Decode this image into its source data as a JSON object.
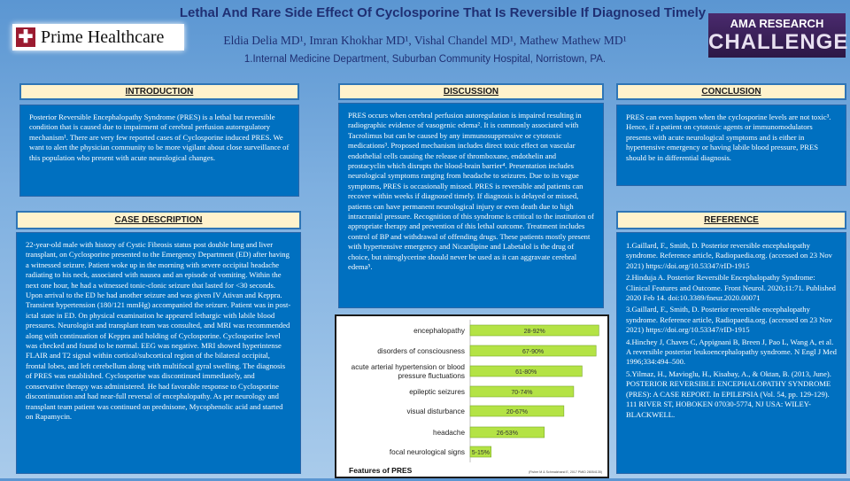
{
  "header": {
    "title": "Lethal And Rare Side Effect Of Cyclosporine That Is Reversible If Diagnosed Timely",
    "authors": "Eldia Delia MD¹, Imran Khokhar MD¹, Vishal Chandel MD¹, Mathew Mathew MD¹",
    "affiliation": "1.Internal Medicine Department, Suburban Community Hospital, Norristown, PA.",
    "logo_left": "Prime Healthcare",
    "logo_right_line1": "AMA RESEARCH",
    "logo_right_line2": "CHALLENGE"
  },
  "introduction": {
    "heading": "INTRODUCTION",
    "text": "Posterior Reversible Encephalopathy Syndrome (PRES) is a lethal but reversible condition that is caused due to impairment of cerebral perfusion autoregulatory mechanism¹. There are very few reported cases of Cyclosporine induced PRES. We want to alert the physician community to be more vigilant about close surveillance of this population who present with acute neurological changes."
  },
  "case": {
    "heading": "CASE DESCRIPTION",
    "text": "22-year-old male with history of Cystic Fibrosis status post double lung and liver transplant, on Cyclosporine presented to the Emergency Department (ED) after having a witnessed seizure. Patient woke up in the morning with severe occipital headache radiating to his neck, associated with nausea and an episode of vomiting. Within the next one hour, he had a witnessed tonic-clonic seizure that lasted for <30 seconds. Upon arrival to the ED he had another seizure and was given IV Ativan and Keppra. Transient hypertension (180/121 mmHg) accompanied the seizure. Patient was in post-ictal state in ED. On physical examination he appeared lethargic with labile blood pressures. Neurologist and transplant team was consulted, and MRI was recommended along with continuation of Keppra and holding of Cyclosporine. Cyclosporine level was checked and found to be normal. EEG was negative. MRI showed hyperintense FLAIR and T2 signal within cortical/subcortical region of the bilateral occipital, frontal lobes, and left cerebellum along with multifocal gyral swelling. The diagnosis of PRES was established. Cyclosporine was discontinued immediately, and conservative therapy was administered. He had favorable response to Cyclosporine discontinuation and had near-full reversal of encephalopathy. As per neurology and transplant team patient was continued on prednisone, Mycophenolic acid and started on Rapamycin."
  },
  "discussion": {
    "heading": "DISCUSSION",
    "text": "PRES occurs when cerebral perfusion autoregulation is impaired resulting in radiographic evidence of vasogenic edema². It is commonly associated with Tacrolimus but can be caused by any immunosuppressive or cytotoxic medications³. Proposed mechanism includes direct toxic effect on vascular endothelial cells causing the release of thromboxane, endothelin and prostacyclin which disrupts the blood-brain barrier⁴. Presentation includes neurological symptoms ranging from headache to seizures. Due to its vague symptoms, PRES is occasionally missed. PRES is reversible and patients can recover within weeks if diagnosed timely. If diagnosis is delayed or missed, patients can have permanent neurological injury or even death due to high intracranial pressure. Recognition of this syndrome is critical to the institution of appropriate therapy and prevention of this lethal outcome. Treatment includes control of BP and withdrawal of offending drugs. These patients mostly present with hypertensive emergency and Nicardipine and Labetalol is the drug of choice, but nitroglycerine should never be used as it can aggravate cerebral edema⁵."
  },
  "conclusion": {
    "heading": "CONCLUSION",
    "text": "PRES can even happen when the cyclosporine levels are not toxic³. Hence, if a patient on cytotoxic agents or immunomodulators presents with acute neurological symptoms and is either in hypertensive emergency or having labile blood pressure, PRES should be in differential diagnosis."
  },
  "reference": {
    "heading": "REFERENCE",
    "items": [
      {
        "text": "1.Gaillard, F., Smith, D. Posterior reversible encephalopathy syndrome. Reference article, Radiopaedia.org. (accessed on 23 Nov 2021) ",
        "link": "https://doi.org/10.53347/rID-1915"
      },
      {
        "text": "2.Hinduja A. Posterior Reversible Encephalopathy Syndrome: Clinical Features and Outcome. Front Neurol. 2020;11:71. Published 2020 Feb 14. doi:10.3389/fneur.2020.00071",
        "link": ""
      },
      {
        "text": "3.Gaillard, F., Smith, D. Posterior reversible encephalopathy syndrome. Reference article, Radiopaedia.org. (accessed on 23 Nov 2021) ",
        "link": "https://doi.org/10.53347/rID-1915"
      },
      {
        "text": "4.Hinchey J, Chaves C, Appignani B, Breen J, Pao L, Wang A, et al. A reversible posterior leukoencephalopathy syndrome. N Engl J Med 1996;334:494–500.",
        "link": ""
      },
      {
        "text": "5.Yilmaz, H., Mavioglu, H., Kisabay, A., & Oktan, B. (2013, June). POSTERIOR REVERSIBLE ENCEPHALOPATHY SYNDROME (PRES): A CASE REPORT. In EPILEPSIA (Vol. 54, pp. 129-129). 111 RIVER ST, HOBOKEN 07030-5774, NJ USA: WILEY-BLACKWELL.",
        "link": ""
      }
    ]
  },
  "chart_data": {
    "type": "bar",
    "orientation": "horizontal",
    "title": "Features of PRES",
    "source": "(Fisher M & Schmalzhand E, 2017 PMID 28054135)",
    "categories": [
      "encephalopathy",
      "disorders of consciousness",
      "acute arterial hypertension or blood pressure fluctuations",
      "epileptic seizures",
      "visual disturbance",
      "headache",
      "focal neurological signs"
    ],
    "labels": [
      "28-92%",
      "67-90%",
      "61-80%",
      "70-74%",
      "20-67%",
      "26-53%",
      "5-15%"
    ],
    "ranges": [
      [
        28,
        92
      ],
      [
        67,
        90
      ],
      [
        61,
        80
      ],
      [
        70,
        74
      ],
      [
        20,
        67
      ],
      [
        26,
        53
      ],
      [
        5,
        15
      ]
    ],
    "bar_color": "#b4e345",
    "xlim": [
      0,
      100
    ]
  }
}
